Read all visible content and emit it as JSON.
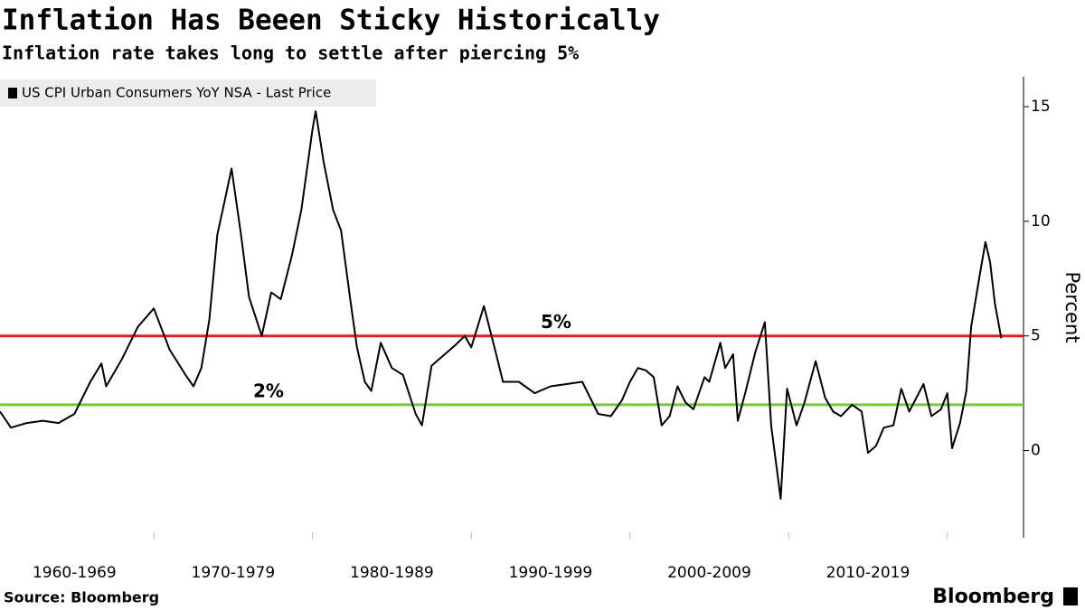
{
  "chart_data": {
    "type": "line",
    "title": "Inflation Has Beeen Sticky Historically",
    "subtitle": "Inflation rate takes long to settle after piercing 5%",
    "y_axis_label": "Percent",
    "source": "Source: Bloomberg",
    "brand": "Bloomberg",
    "xlim": [
      1960.31,
      2024.8
    ],
    "ylim": [
      -3.8,
      16.3
    ],
    "yticks": [
      0,
      5,
      10,
      15
    ],
    "xticks": [
      {
        "value": 1960,
        "label": "1960-1969"
      },
      {
        "value": 1970,
        "label": "1970-1979"
      },
      {
        "value": 1980,
        "label": "1980-1989"
      },
      {
        "value": 1990,
        "label": "1990-1999"
      },
      {
        "value": 2000,
        "label": "2000-2009"
      },
      {
        "value": 2010,
        "label": "2010-2019"
      },
      {
        "value": 2020,
        "label": ""
      }
    ],
    "reference_lines": [
      {
        "value": 5,
        "label": "5%",
        "color": "#e0201f"
      },
      {
        "value": 2,
        "label": "2%",
        "color": "#7dc832"
      }
    ],
    "series": [
      {
        "name": "US CPI Urban Consumers YoY NSA - Last Price",
        "color": "#000000",
        "x": [
          1960.31,
          1961,
          1962,
          1963,
          1964,
          1965,
          1966,
          1966.7,
          1967,
          1968,
          1969,
          1970,
          1971,
          1972,
          1972.5,
          1973,
          1973.5,
          1974,
          1974.5,
          1974.9,
          1975.5,
          1976,
          1976.8,
          1977.4,
          1978,
          1978.7,
          1979.3,
          1980,
          1980.2,
          1980.7,
          1981.3,
          1981.8,
          1982.4,
          1982.8,
          1983.3,
          1983.7,
          1984.3,
          1985,
          1985.7,
          1986.5,
          1986.9,
          1987.5,
          1988,
          1989,
          1989.6,
          1990,
          1990.8,
          1991.5,
          1992,
          1993,
          1994,
          1995,
          1996,
          1997,
          1998,
          1998.8,
          1999.5,
          2000,
          2000.5,
          2001,
          2001.5,
          2002,
          2002.5,
          2003,
          2003.5,
          2004,
          2004.7,
          2005,
          2005.7,
          2006,
          2006.5,
          2006.8,
          2007.3,
          2007.9,
          2008.5,
          2008.9,
          2009.5,
          2009.9,
          2010.5,
          2011,
          2011.7,
          2012.3,
          2012.8,
          2013.3,
          2014,
          2014.6,
          2015,
          2015.5,
          2016,
          2016.6,
          2017.1,
          2017.6,
          2018.5,
          2019,
          2019.6,
          2020,
          2020.3,
          2020.8,
          2021.2,
          2021.5,
          2022,
          2022.4,
          2022.7,
          2023,
          2023.4
        ],
        "values": [
          1.7,
          1.0,
          1.2,
          1.3,
          1.2,
          1.6,
          3.0,
          3.8,
          2.8,
          4.0,
          5.4,
          6.2,
          4.4,
          3.3,
          2.8,
          3.6,
          5.7,
          9.4,
          11.0,
          12.3,
          9.4,
          6.7,
          5.0,
          6.9,
          6.6,
          8.5,
          10.5,
          14.0,
          14.8,
          12.6,
          10.5,
          9.6,
          6.5,
          4.5,
          3.0,
          2.6,
          4.7,
          3.6,
          3.3,
          1.6,
          1.1,
          3.7,
          4.0,
          4.6,
          5.0,
          4.5,
          6.3,
          4.4,
          3.0,
          3.0,
          2.5,
          2.8,
          2.9,
          3.0,
          1.6,
          1.5,
          2.2,
          3.0,
          3.6,
          3.5,
          3.2,
          1.1,
          1.5,
          2.8,
          2.1,
          1.8,
          3.2,
          3.0,
          4.7,
          3.6,
          4.2,
          1.3,
          2.6,
          4.3,
          5.6,
          1.1,
          -2.1,
          2.7,
          1.1,
          2.1,
          3.9,
          2.3,
          1.7,
          1.5,
          2.0,
          1.7,
          -0.1,
          0.2,
          1.0,
          1.1,
          2.7,
          1.7,
          2.9,
          1.5,
          1.8,
          2.5,
          0.1,
          1.2,
          2.6,
          5.4,
          7.5,
          9.1,
          8.2,
          6.4,
          4.9
        ]
      }
    ]
  }
}
